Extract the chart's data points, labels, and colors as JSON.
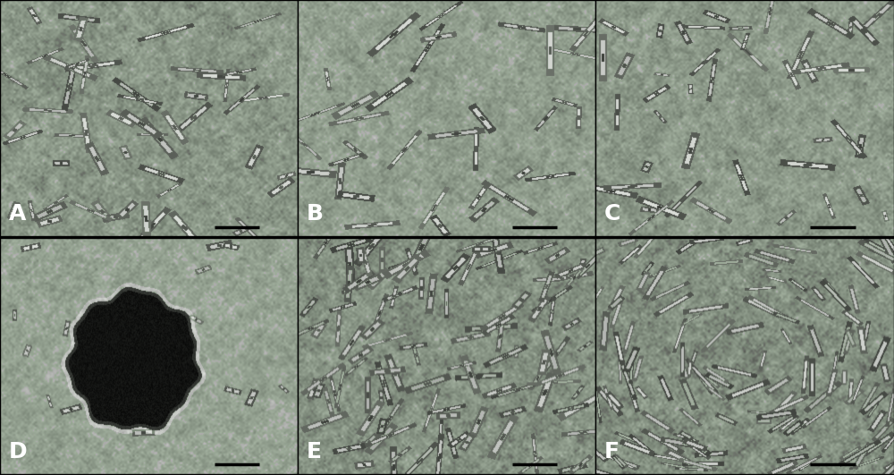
{
  "figure_width": 10.0,
  "figure_height": 5.31,
  "dpi": 100,
  "panels": [
    "A",
    "B",
    "C",
    "D",
    "E",
    "F"
  ],
  "label_fontsize": 18,
  "label_fontweight": "bold",
  "label_color": "#ffffff",
  "border_color": "#000000",
  "bg_base": 0.62,
  "bg_noise": 0.06,
  "green_tint_r": 0.9,
  "green_tint_g": 0.95,
  "green_tint_b": 0.88,
  "cell_bright": 0.88,
  "cell_dark": 0.38,
  "scalebar_color": "#000000"
}
